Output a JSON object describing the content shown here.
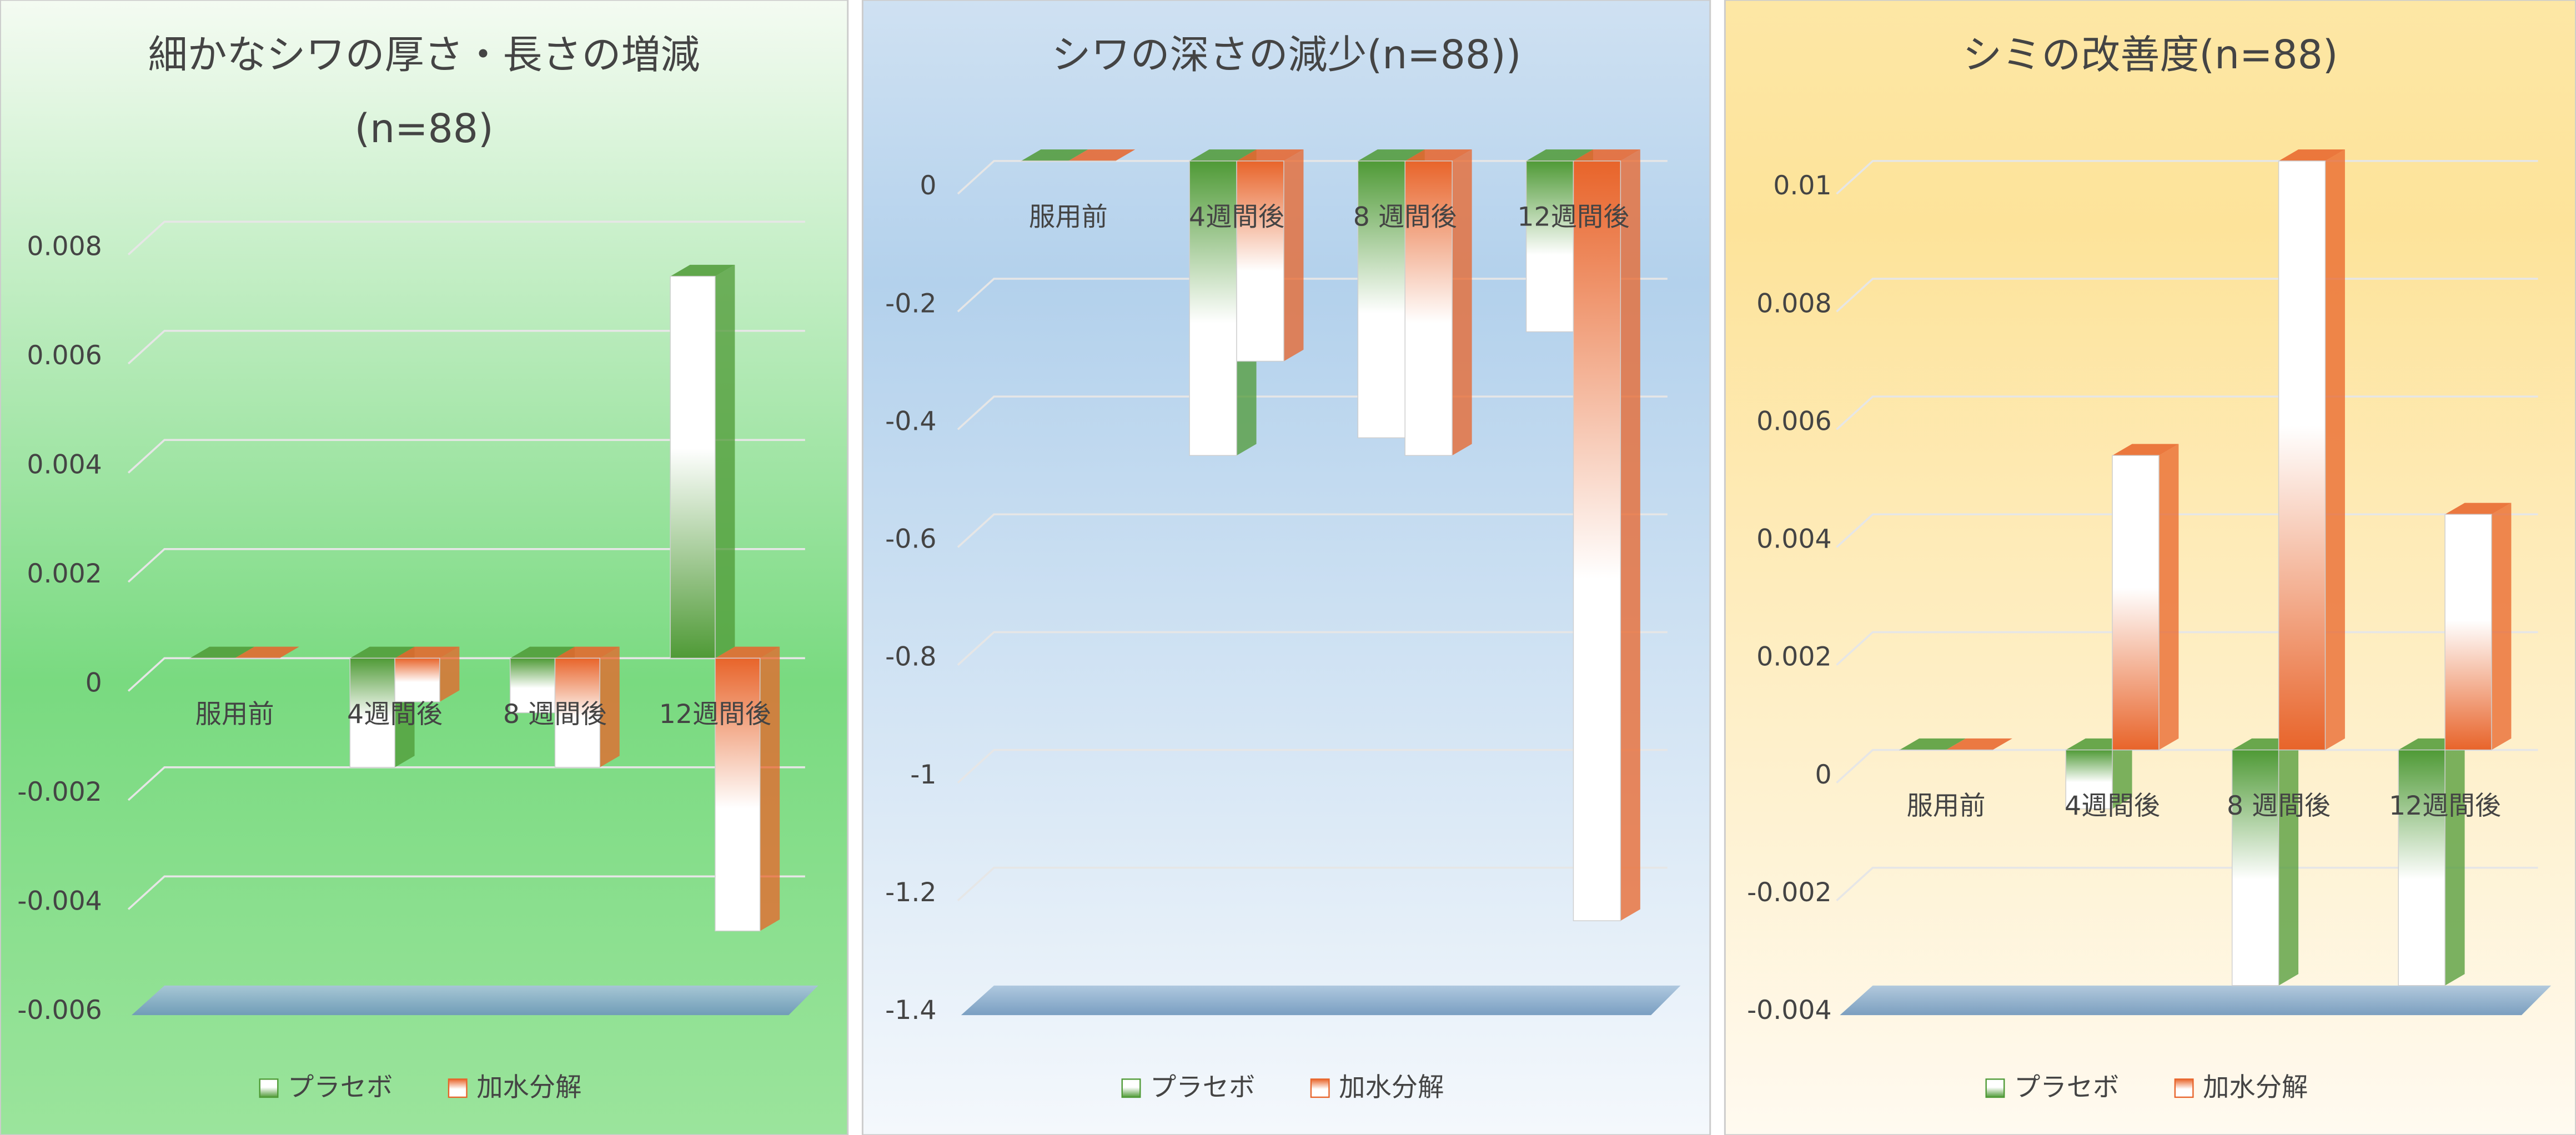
{
  "chart_data": [
    {
      "type": "bar",
      "title": "細かなシワの厚さ・長さの増減",
      "subtitle": "(n=88)",
      "categories": [
        "服用前",
        "4週間後",
        "8 週間後",
        "12週間後"
      ],
      "series": [
        {
          "name": "プラセボ",
          "color": "#4f9a36",
          "values": [
            0,
            -0.002,
            -0.001,
            0.007
          ]
        },
        {
          "name": "加水分解",
          "color": "#e8642a",
          "values": [
            0,
            -0.0008,
            -0.002,
            -0.005
          ]
        }
      ],
      "ylim": [
        -0.006,
        0.008
      ],
      "yticks": [
        -0.006,
        -0.004,
        -0.002,
        0,
        0.002,
        0.004,
        0.006,
        0.008
      ],
      "grid": true
    },
    {
      "type": "bar",
      "title": "シワの深さの減少(n=88))",
      "categories": [
        "服用前",
        "4週間後",
        "8 週間後",
        "12週間後"
      ],
      "series": [
        {
          "name": "プラセボ",
          "color": "#4f9a36",
          "values": [
            0,
            -0.5,
            -0.47,
            -0.29
          ]
        },
        {
          "name": "加水分解",
          "color": "#e8642a",
          "values": [
            0,
            -0.34,
            -0.5,
            -1.29
          ]
        }
      ],
      "ylim": [
        -1.4,
        0
      ],
      "yticks": [
        -1.4,
        -1.2,
        -1,
        -0.8,
        -0.6,
        -0.4,
        -0.2,
        0
      ],
      "grid": true
    },
    {
      "type": "bar",
      "title": "シミの改善度(n=88)",
      "categories": [
        "服用前",
        "4週間後",
        "8 週間後",
        "12週間後"
      ],
      "series": [
        {
          "name": "プラセボ",
          "color": "#4f9a36",
          "values": [
            0,
            -0.001,
            -0.004,
            -0.004
          ]
        },
        {
          "name": "加水分解",
          "color": "#e8642a",
          "values": [
            0,
            0.005,
            0.01,
            0.004
          ]
        }
      ],
      "ylim": [
        -0.004,
        0.01
      ],
      "yticks": [
        -0.004,
        -0.002,
        0,
        0.002,
        0.004,
        0.006,
        0.008,
        0.01
      ],
      "grid": true
    }
  ]
}
